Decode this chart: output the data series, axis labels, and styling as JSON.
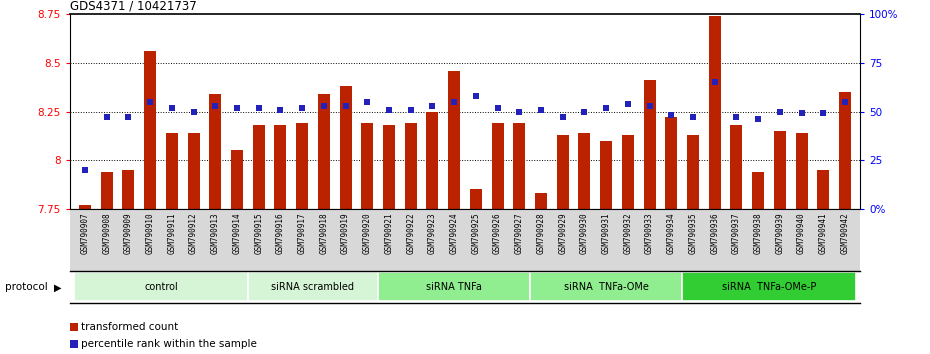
{
  "title": "GDS4371 / 10421737",
  "samples": [
    "GSM790907",
    "GSM790908",
    "GSM790909",
    "GSM790910",
    "GSM790911",
    "GSM790912",
    "GSM790913",
    "GSM790914",
    "GSM790915",
    "GSM790916",
    "GSM790917",
    "GSM790918",
    "GSM790919",
    "GSM790920",
    "GSM790921",
    "GSM790922",
    "GSM790923",
    "GSM790924",
    "GSM790925",
    "GSM790926",
    "GSM790927",
    "GSM790928",
    "GSM790929",
    "GSM790930",
    "GSM790931",
    "GSM790932",
    "GSM790933",
    "GSM790934",
    "GSM790935",
    "GSM790936",
    "GSM790937",
    "GSM790938",
    "GSM790939",
    "GSM790940",
    "GSM790941",
    "GSM790942"
  ],
  "transformed_count": [
    7.77,
    7.94,
    7.95,
    8.56,
    8.14,
    8.14,
    8.34,
    8.05,
    8.18,
    8.18,
    8.19,
    8.34,
    8.38,
    8.19,
    8.18,
    8.19,
    8.25,
    8.46,
    7.85,
    8.19,
    8.19,
    7.83,
    8.13,
    8.14,
    8.1,
    8.13,
    8.41,
    8.22,
    8.13,
    8.74,
    8.18,
    7.94,
    8.15,
    8.14,
    7.95,
    8.35
  ],
  "percentile_rank": [
    20,
    47,
    47,
    55,
    52,
    50,
    53,
    52,
    52,
    51,
    52,
    53,
    53,
    55,
    51,
    51,
    53,
    55,
    58,
    52,
    50,
    51,
    47,
    50,
    52,
    54,
    53,
    48,
    47,
    65,
    47,
    46,
    50,
    49,
    49,
    55
  ],
  "groups": [
    {
      "label": "control",
      "start": 0,
      "end": 8,
      "color": "#d6f5d6"
    },
    {
      "label": "siRNA scrambled",
      "start": 8,
      "end": 14,
      "color": "#d6f5d6"
    },
    {
      "label": "siRNA TNFa",
      "start": 14,
      "end": 21,
      "color": "#90ee90"
    },
    {
      "label": "siRNA  TNFa-OMe",
      "start": 21,
      "end": 28,
      "color": "#90ee90"
    },
    {
      "label": "siRNA  TNFa-OMe-P",
      "start": 28,
      "end": 36,
      "color": "#32cd32"
    }
  ],
  "ylim_left": [
    7.75,
    8.75
  ],
  "ylim_right": [
    0,
    100
  ],
  "yticks_left": [
    7.75,
    8.0,
    8.25,
    8.5,
    8.75
  ],
  "yticks_right": [
    0,
    25,
    50,
    75,
    100
  ],
  "ytick_labels_right": [
    "0%",
    "25",
    "50",
    "75",
    "100%"
  ],
  "bar_color": "#bb2200",
  "dot_color": "#2222bb",
  "bar_bottom": 7.75,
  "hline_values": [
    8.0,
    8.25,
    8.5
  ],
  "legend_items": [
    {
      "label": "transformed count",
      "color": "#bb2200"
    },
    {
      "label": "percentile rank within the sample",
      "color": "#2222bb"
    }
  ]
}
